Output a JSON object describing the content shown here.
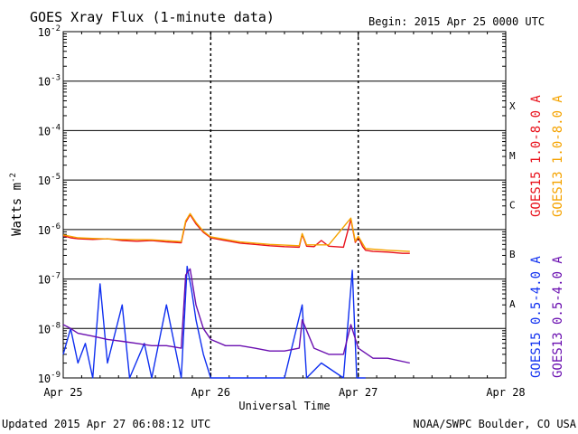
{
  "chart_data": {
    "type": "line",
    "title": "GOES Xray Flux (1-minute data)",
    "begin_label": "Begin:  2015 Apr 25 0000 UTC",
    "ylabel": "Watts m",
    "ylabel_sup": "-2",
    "xlabel": "Universal Time",
    "y_scale": "log",
    "ylim": [
      1e-09,
      0.01
    ],
    "y_ticks": [
      {
        "base": "10",
        "exp": "-2",
        "value": 0.01
      },
      {
        "base": "10",
        "exp": "-3",
        "value": 0.001
      },
      {
        "base": "10",
        "exp": "-4",
        "value": 0.0001
      },
      {
        "base": "10",
        "exp": "-5",
        "value": 1e-05
      },
      {
        "base": "10",
        "exp": "-6",
        "value": 1e-06
      },
      {
        "base": "10",
        "exp": "-7",
        "value": 1e-07
      },
      {
        "base": "10",
        "exp": "-8",
        "value": 1e-08
      },
      {
        "base": "10",
        "exp": "-9",
        "value": 1e-09
      }
    ],
    "x_ticks": [
      {
        "label": "Apr 25",
        "value": 0
      },
      {
        "label": "Apr 26",
        "value": 1
      },
      {
        "label": "Apr 27",
        "value": 2
      },
      {
        "label": "Apr 28",
        "value": 3
      }
    ],
    "xlim": [
      0,
      3
    ],
    "flare_classes": [
      {
        "label": "X",
        "band_min": 0.0001,
        "band_max": 0.001
      },
      {
        "label": "M",
        "band_min": 1e-05,
        "band_max": 0.0001
      },
      {
        "label": "C",
        "band_min": 1e-06,
        "band_max": 1e-05
      },
      {
        "label": "B",
        "band_min": 1e-07,
        "band_max": 1e-06
      },
      {
        "label": "A",
        "band_min": 1e-08,
        "band_max": 1e-07
      }
    ],
    "legend_right": [
      {
        "text": "GOES15 1.0-8.0 A",
        "color": "#e8101a",
        "group": "upper"
      },
      {
        "text": "GOES13 1.0-8.0 A",
        "color": "#f5a300",
        "group": "upper"
      },
      {
        "text": "GOES15 0.5-4.0 A",
        "color": "#1030f0",
        "group": "lower"
      },
      {
        "text": "GOES13 0.5-4.0 A",
        "color": "#6a0fb0",
        "group": "lower"
      }
    ],
    "grid": true,
    "series": [
      {
        "name": "GOES15 1.0-8.0 A",
        "color": "#e8101a",
        "points": [
          [
            0.0,
            7.5e-07
          ],
          [
            0.05,
            6.8e-07
          ],
          [
            0.1,
            6.5e-07
          ],
          [
            0.2,
            6.3e-07
          ],
          [
            0.3,
            6.5e-07
          ],
          [
            0.4,
            6e-07
          ],
          [
            0.5,
            5.8e-07
          ],
          [
            0.6,
            6e-07
          ],
          [
            0.7,
            5.6e-07
          ],
          [
            0.8,
            5.4e-07
          ],
          [
            0.83,
            1.4e-06
          ],
          [
            0.86,
            2e-06
          ],
          [
            0.9,
            1.3e-06
          ],
          [
            0.95,
            8.8e-07
          ],
          [
            1.0,
            6.8e-07
          ],
          [
            1.1,
            6e-07
          ],
          [
            1.2,
            5.3e-07
          ],
          [
            1.3,
            5e-07
          ],
          [
            1.4,
            4.7e-07
          ],
          [
            1.5,
            4.5e-07
          ],
          [
            1.6,
            4.4e-07
          ],
          [
            1.62,
            8e-07
          ],
          [
            1.65,
            4.6e-07
          ],
          [
            1.7,
            4.5e-07
          ],
          [
            1.75,
            6e-07
          ],
          [
            1.8,
            4.6e-07
          ],
          [
            1.9,
            4.4e-07
          ],
          [
            1.95,
            1.6e-06
          ],
          [
            1.98,
            5.5e-07
          ],
          [
            2.0,
            7e-07
          ],
          [
            2.03,
            4.5e-07
          ],
          [
            2.05,
            3.8e-07
          ],
          [
            2.1,
            3.6e-07
          ],
          [
            2.2,
            3.5e-07
          ],
          [
            2.3,
            3.3e-07
          ],
          [
            2.35,
            3.3e-07
          ]
        ]
      },
      {
        "name": "GOES13 1.0-8.0 A",
        "color": "#f5a300",
        "points": [
          [
            0.0,
            7.8e-07
          ],
          [
            0.1,
            6.8e-07
          ],
          [
            0.2,
            6.6e-07
          ],
          [
            0.4,
            6.3e-07
          ],
          [
            0.6,
            6.2e-07
          ],
          [
            0.8,
            5.7e-07
          ],
          [
            0.83,
            1.5e-06
          ],
          [
            0.86,
            2.1e-06
          ],
          [
            0.9,
            1.4e-06
          ],
          [
            0.95,
            9.2e-07
          ],
          [
            1.0,
            7.1e-07
          ],
          [
            1.2,
            5.6e-07
          ],
          [
            1.4,
            5e-07
          ],
          [
            1.6,
            4.7e-07
          ],
          [
            1.62,
            8.3e-07
          ],
          [
            1.65,
            4.9e-07
          ],
          [
            1.8,
            4.9e-07
          ],
          [
            1.95,
            1.7e-06
          ],
          [
            1.98,
            5.8e-07
          ],
          [
            2.0,
            7.3e-07
          ],
          [
            2.05,
            4.1e-07
          ],
          [
            2.2,
            3.8e-07
          ],
          [
            2.35,
            3.6e-07
          ]
        ]
      },
      {
        "name": "GOES15 0.5-4.0 A",
        "color": "#1030f0",
        "points": [
          [
            0.0,
            3e-09
          ],
          [
            0.05,
            1e-08
          ],
          [
            0.1,
            2e-09
          ],
          [
            0.15,
            5e-09
          ],
          [
            0.2,
            1e-09
          ],
          [
            0.25,
            8e-08
          ],
          [
            0.3,
            2e-09
          ],
          [
            0.4,
            3e-08
          ],
          [
            0.45,
            1e-09
          ],
          [
            0.55,
            5e-09
          ],
          [
            0.6,
            1e-09
          ],
          [
            0.7,
            3e-08
          ],
          [
            0.8,
            1e-09
          ],
          [
            0.84,
            1.8e-07
          ],
          [
            0.87,
            6e-08
          ],
          [
            0.9,
            1.5e-08
          ],
          [
            0.95,
            3e-09
          ],
          [
            1.0,
            1e-09
          ],
          [
            1.1,
            1e-09
          ],
          [
            1.5,
            1e-09
          ],
          [
            1.62,
            3e-08
          ],
          [
            1.65,
            1e-09
          ],
          [
            1.75,
            2e-09
          ],
          [
            1.9,
            1e-09
          ],
          [
            1.96,
            1.5e-07
          ],
          [
            1.99,
            1e-09
          ],
          [
            2.05,
            1e-09
          ]
        ]
      },
      {
        "name": "GOES13 0.5-4.0 A",
        "color": "#6a0fb0",
        "points": [
          [
            0.0,
            1.2e-08
          ],
          [
            0.05,
            1e-08
          ],
          [
            0.1,
            8e-09
          ],
          [
            0.2,
            7e-09
          ],
          [
            0.3,
            6e-09
          ],
          [
            0.4,
            5.5e-09
          ],
          [
            0.5,
            5e-09
          ],
          [
            0.6,
            4.5e-09
          ],
          [
            0.7,
            4.5e-09
          ],
          [
            0.8,
            4e-09
          ],
          [
            0.83,
            1.2e-07
          ],
          [
            0.86,
            1.6e-07
          ],
          [
            0.9,
            3e-08
          ],
          [
            0.95,
            1e-08
          ],
          [
            1.0,
            6e-09
          ],
          [
            1.1,
            4.5e-09
          ],
          [
            1.2,
            4.5e-09
          ],
          [
            1.3,
            4e-09
          ],
          [
            1.4,
            3.5e-09
          ],
          [
            1.5,
            3.5e-09
          ],
          [
            1.6,
            4e-09
          ],
          [
            1.62,
            1.5e-08
          ],
          [
            1.7,
            4e-09
          ],
          [
            1.8,
            3e-09
          ],
          [
            1.9,
            3e-09
          ],
          [
            1.95,
            1.2e-08
          ],
          [
            2.0,
            4e-09
          ],
          [
            2.1,
            2.5e-09
          ],
          [
            2.2,
            2.5e-09
          ],
          [
            2.35,
            2e-09
          ]
        ]
      }
    ]
  },
  "footer": {
    "updated": "Updated 2015 Apr 27 06:08:12 UTC",
    "credit": "NOAA/SWPC Boulder, CO USA"
  }
}
